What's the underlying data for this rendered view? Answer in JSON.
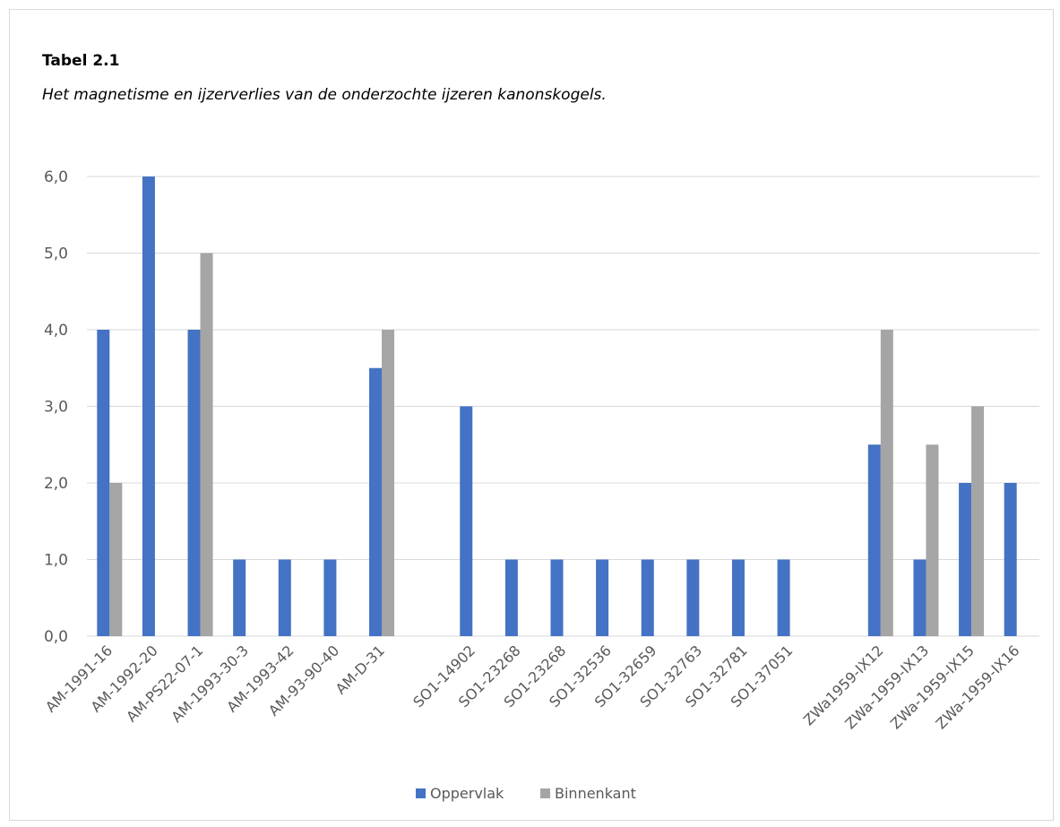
{
  "header": {
    "table_label": "Tabel 2.1",
    "caption": "Het magnetisme en ijzerverlies van de onderzochte ijzeren kanonskogels."
  },
  "colors": {
    "series_1": "#4472c4",
    "series_2": "#a5a5a5",
    "gridline": "#d9d9d9",
    "axis_text": "#595959"
  },
  "chart_data": {
    "type": "bar",
    "categories": [
      "AM-1991-16",
      "AM-1992-20",
      "AM-PS22-07-1",
      "AM-1993-30-3",
      "AM-1993-42",
      "AM-93-90-40",
      "AM-D-31",
      "",
      "SO1-14902",
      "SO1-23268",
      "SO1-23268",
      "SO1-32536",
      "SO1-32659",
      "SO1-32763",
      "SO1-32781",
      "SO1-37051",
      "",
      "ZWa1959-IX12",
      "ZWa-1959-IX13",
      "ZWa-1959-IX15",
      "ZWa-1959-IX16"
    ],
    "series": [
      {
        "name": "Oppervlak",
        "values": [
          4,
          6,
          4,
          1,
          1,
          1,
          3.5,
          null,
          3,
          1,
          1,
          1,
          1,
          1,
          1,
          1,
          null,
          2.5,
          1,
          2,
          2
        ]
      },
      {
        "name": "Binnenkant",
        "values": [
          2,
          null,
          5,
          null,
          null,
          null,
          4,
          null,
          null,
          null,
          null,
          null,
          null,
          null,
          null,
          null,
          null,
          4,
          2.5,
          3,
          null
        ]
      }
    ],
    "y_ticks": [
      "0,0",
      "1,0",
      "2,0",
      "3,0",
      "4,0",
      "5,0",
      "6,0"
    ],
    "ylim": [
      0,
      6
    ],
    "grid": true,
    "legend_position": "bottom"
  }
}
